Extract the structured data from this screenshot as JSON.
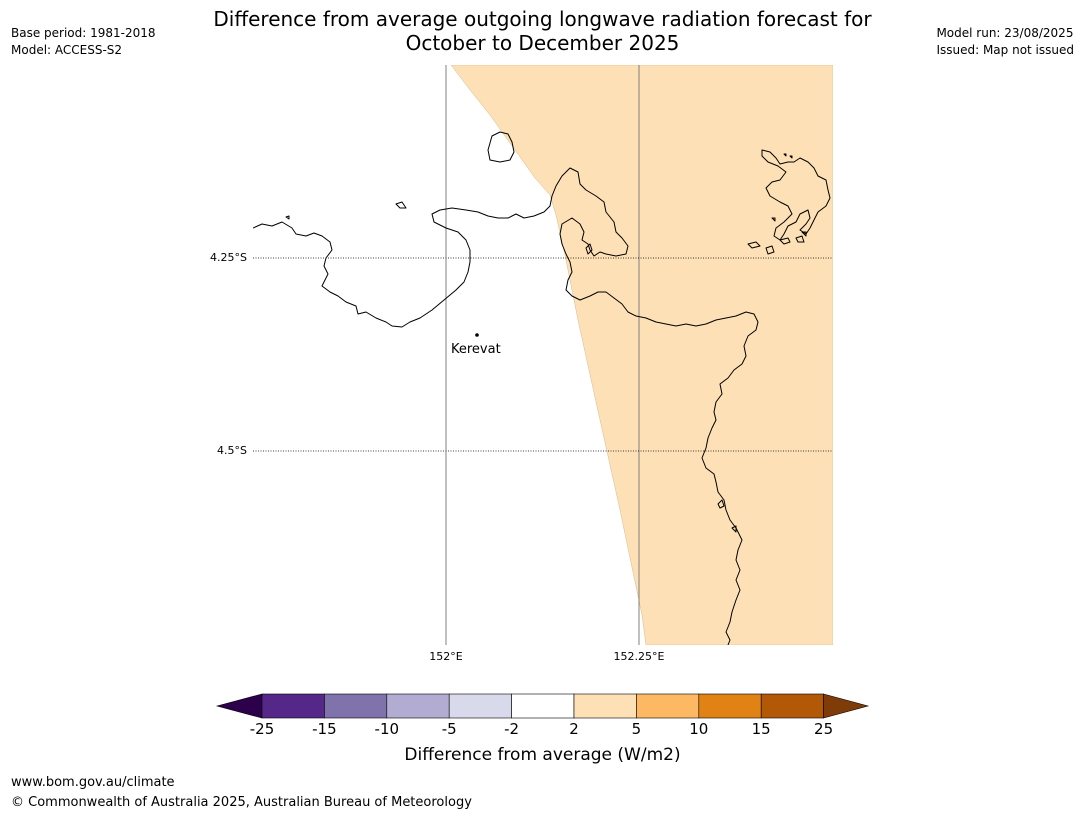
{
  "title": {
    "line1": "Difference from average outgoing longwave radiation forecast for",
    "line2": "October to December 2025"
  },
  "meta_left": {
    "base_period": "Base period: 1981-2018",
    "model": "Model: ACCESS-S2"
  },
  "meta_right": {
    "model_run": "Model run: 23/08/2025",
    "issued": "Issued: Map not issued"
  },
  "map": {
    "latitude_labels": [
      "4.25°S",
      "4.5°S"
    ],
    "longitude_labels": [
      "152°E",
      "152.25°E"
    ],
    "places": [
      {
        "name": "Kerevat"
      }
    ],
    "shaded_category": "2 to 5",
    "colors": {
      "shaded_fill": "#fde0b6",
      "coast": "#000000",
      "gridline": "#808080"
    }
  },
  "colorbar": {
    "title": "Difference from average (W/m2)",
    "tick_labels": [
      "-25",
      "-15",
      "-10",
      "-5",
      "-2",
      "2",
      "5",
      "10",
      "15",
      "25"
    ],
    "colors": [
      "#2d004b",
      "#542788",
      "#8073ac",
      "#b2abd2",
      "#d8daeb",
      "#ffffff",
      "#fee0b6",
      "#fdb863",
      "#e08214",
      "#b35806",
      "#7f3b08"
    ]
  },
  "footer": {
    "url": "www.bom.gov.au/climate",
    "copyright": "© Commonwealth of Australia 2025, Australian Bureau of Meteorology"
  }
}
